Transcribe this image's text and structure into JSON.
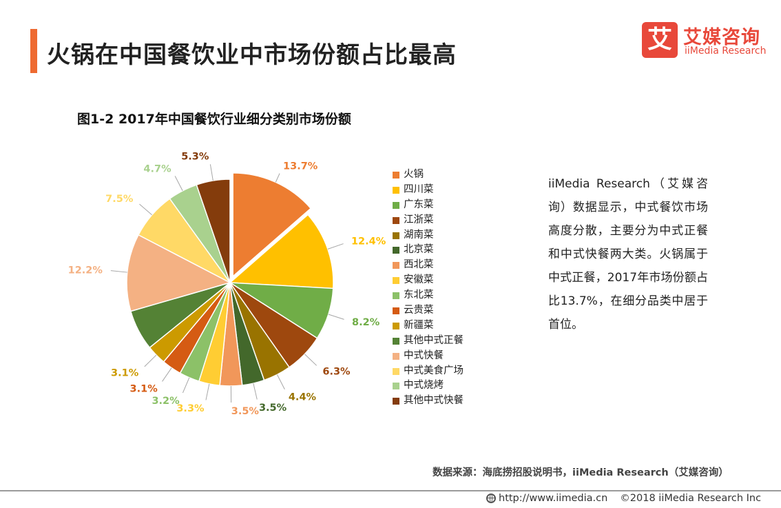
{
  "header": {
    "title": "火锅在中国餐饮业中市场份额占比最高"
  },
  "logo": {
    "mark": "艾",
    "name": "艾媒咨询",
    "sub": "iiMedia Research"
  },
  "figure": {
    "caption": "图1-2  2017年中国餐饮行业细分类别市场份额"
  },
  "chart_data": {
    "type": "pie",
    "title": "",
    "unit": "%",
    "slices": [
      {
        "label": "火锅",
        "value": 13.7,
        "display": "13.7%",
        "color": "#ed7d31",
        "label_color": "#ed7d31",
        "exploded": true
      },
      {
        "label": "四川菜",
        "value": 12.4,
        "display": "12.4%",
        "color": "#ffc000",
        "label_color": "#ffc000"
      },
      {
        "label": "广东菜",
        "value": 8.2,
        "display": "8.2%",
        "color": "#70ad47",
        "label_color": "#70ad47"
      },
      {
        "label": "江浙菜",
        "value": 6.3,
        "display": "6.3%",
        "color": "#9e480e",
        "label_color": "#9e480e"
      },
      {
        "label": "湖南菜",
        "value": 4.4,
        "display": "4.4%",
        "color": "#997300",
        "label_color": "#997300"
      },
      {
        "label": "北京菜",
        "value": 3.5,
        "display": "3.5%",
        "color": "#43682b",
        "label_color": "#43682b"
      },
      {
        "label": "西北菜",
        "value": 3.5,
        "display": "3.5%",
        "color": "#f1975a",
        "label_color": "#f1975a"
      },
      {
        "label": "安徽菜",
        "value": 3.3,
        "display": "3.3%",
        "color": "#ffcd33",
        "label_color": "#ffcd33"
      },
      {
        "label": "东北菜",
        "value": 3.2,
        "display": "3.2%",
        "color": "#8cc168",
        "label_color": "#8cc168"
      },
      {
        "label": "云贵菜",
        "value": 3.1,
        "display": "3.1%",
        "color": "#d55b13",
        "label_color": "#d55b13"
      },
      {
        "label": "新疆菜",
        "value": 3.1,
        "display": "3.1%",
        "color": "#cc9a00",
        "label_color": "#cc9a00"
      },
      {
        "label": "其他中式正餐",
        "value": 6.4,
        "display": "",
        "color": "#548235",
        "label_color": "#548235"
      },
      {
        "label": "中式快餐",
        "value": 12.2,
        "display": "12.2%",
        "color": "#f4b183",
        "label_color": "#f4b183"
      },
      {
        "label": "中式美食广场",
        "value": 7.5,
        "display": "7.5%",
        "color": "#ffd966",
        "label_color": "#ffd966"
      },
      {
        "label": "中式烧烤",
        "value": 4.7,
        "display": "4.7%",
        "color": "#a9d18e",
        "label_color": "#a9d18e"
      },
      {
        "label": "其他中式快餐",
        "value": 5.3,
        "display": "5.3%",
        "color": "#843c0c",
        "label_color": "#843c0c"
      }
    ],
    "legend_position": "right"
  },
  "description": "iiMedia Research（艾媒咨询）数据显示，中式餐饮市场高度分散，主要分为中式正餐和中式快餐两大类。火锅属于中式正餐，2017年市场份额占比13.7%，在细分品类中居于首位。",
  "source": "数据来源：海底捞招股说明书，iiMedia Research（艾媒咨询）",
  "footer": {
    "url": "http://www.iimedia.cn",
    "copyright": "©2018  iiMedia Research Inc"
  }
}
